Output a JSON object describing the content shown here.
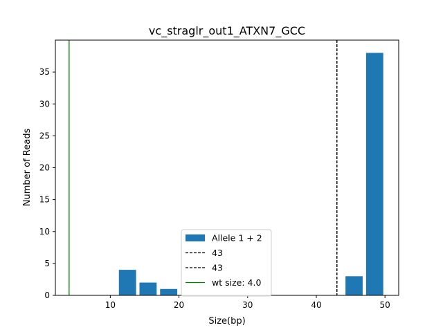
{
  "chart_data": {
    "type": "bar",
    "title": "vc_straglr_out1_ATXN7_GCC",
    "xlabel": "Size(bp)",
    "ylabel": "Number of Reads",
    "xlim": [
      2,
      52
    ],
    "ylim": [
      0,
      40
    ],
    "xticks": [
      10,
      20,
      30,
      40,
      50
    ],
    "yticks": [
      0,
      5,
      10,
      15,
      20,
      25,
      30,
      35
    ],
    "bar_width": 2.5,
    "grid": false,
    "series": [
      {
        "name": "Allele 1 + 2",
        "color": "#1f77b4",
        "x": [
          12.5,
          15.5,
          18.5,
          45.5,
          48.5
        ],
        "values": [
          4,
          2,
          1,
          3,
          38
        ]
      }
    ],
    "vlines": [
      {
        "label": "43",
        "x": 43,
        "color": "#000000",
        "style": "dashed"
      },
      {
        "label": "43",
        "x": 43,
        "color": "#000000",
        "style": "dashed"
      },
      {
        "label": "wt size: 4.0",
        "x": 4.0,
        "color": "#008000",
        "style": "solid"
      }
    ],
    "legend_position": "lower-center"
  }
}
